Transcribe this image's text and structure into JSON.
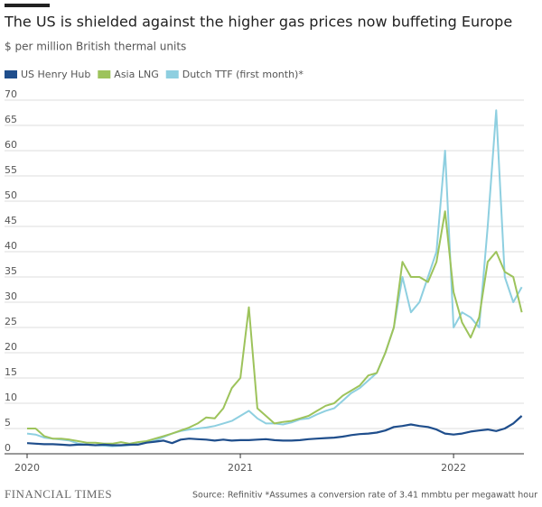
{
  "chart_data": {
    "type": "line",
    "title": "The US is shielded against the higher gas prices now buffeting Europe",
    "subtitle": "$ per million British thermal units",
    "source": "Source: Refinitiv *Assumes a conversion rate of 3.41 mmbtu per megawatt hour",
    "brand": "FINANCIAL TIMES",
    "x": [
      2020.0,
      2020.04,
      2020.08,
      2020.12,
      2020.16,
      2020.2,
      2020.24,
      2020.28,
      2020.32,
      2020.36,
      2020.4,
      2020.44,
      2020.48,
      2020.52,
      2020.56,
      2020.6,
      2020.64,
      2020.68,
      2020.72,
      2020.76,
      2020.8,
      2020.84,
      2020.88,
      2020.92,
      2020.96,
      2021.0,
      2021.04,
      2021.08,
      2021.12,
      2021.16,
      2021.2,
      2021.24,
      2021.28,
      2021.32,
      2021.36,
      2021.4,
      2021.44,
      2021.48,
      2021.52,
      2021.56,
      2021.6,
      2021.64,
      2021.68,
      2021.72,
      2021.76,
      2021.8,
      2021.84,
      2021.88,
      2021.92,
      2021.96,
      2022.0,
      2022.04,
      2022.08,
      2022.12,
      2022.16,
      2022.2,
      2022.24,
      2022.28,
      2022.32
    ],
    "series": [
      {
        "name": "US Henry Hub",
        "color": "#1f4e8c",
        "values": [
          2.1,
          2.0,
          1.9,
          1.9,
          1.8,
          1.7,
          1.8,
          1.8,
          1.7,
          1.8,
          1.7,
          1.7,
          1.8,
          1.8,
          2.2,
          2.4,
          2.6,
          2.1,
          2.8,
          3.0,
          2.9,
          2.8,
          2.6,
          2.8,
          2.6,
          2.7,
          2.7,
          2.8,
          2.9,
          2.7,
          2.6,
          2.6,
          2.7,
          2.9,
          3.0,
          3.1,
          3.2,
          3.4,
          3.7,
          3.9,
          4.0,
          4.2,
          4.6,
          5.3,
          5.5,
          5.8,
          5.5,
          5.3,
          4.8,
          4.0,
          3.8,
          4.0,
          4.4,
          4.6,
          4.8,
          4.5,
          5.0,
          6.0,
          7.5
        ]
      },
      {
        "name": "Asia LNG",
        "color": "#9dc35b",
        "values": [
          5.0,
          5.0,
          3.5,
          3.0,
          3.0,
          2.8,
          2.5,
          2.2,
          2.2,
          2.0,
          2.0,
          2.3,
          2.0,
          2.3,
          2.5,
          3.0,
          3.5,
          4.0,
          4.6,
          5.2,
          6.0,
          7.2,
          7.0,
          9.0,
          13.0,
          15.0,
          29.0,
          9.0,
          7.5,
          6.0,
          6.3,
          6.5,
          7.0,
          7.5,
          8.5,
          9.5,
          10.0,
          11.5,
          12.5,
          13.5,
          15.5,
          16.0,
          20.0,
          25.0,
          38.0,
          35.0,
          35.0,
          34.0,
          38.0,
          48.0,
          32.0,
          26.0,
          23.0,
          27.0,
          38.0,
          40.0,
          36.0,
          35.0,
          28.0
        ]
      },
      {
        "name": "Dutch TTF (first month)*",
        "color": "#8ecfe0",
        "values": [
          4.0,
          3.8,
          3.2,
          3.0,
          2.8,
          2.6,
          2.0,
          1.8,
          1.7,
          1.6,
          1.5,
          1.6,
          1.7,
          1.9,
          2.2,
          2.6,
          3.3,
          4.0,
          4.5,
          4.8,
          5.0,
          5.2,
          5.5,
          6.0,
          6.5,
          7.5,
          8.5,
          7.0,
          6.0,
          6.0,
          5.8,
          6.2,
          6.8,
          7.0,
          7.8,
          8.5,
          9.0,
          10.5,
          12.0,
          13.0,
          14.5,
          16.0,
          20.0,
          25.0,
          35.0,
          28.0,
          30.0,
          35.0,
          40.0,
          60.0,
          25.0,
          28.0,
          27.0,
          25.0,
          45.0,
          68.0,
          35.0,
          30.0,
          33.0
        ]
      }
    ],
    "xlim": [
      2020,
      2022.33
    ],
    "xticks": [
      2020,
      2021,
      2022
    ],
    "ylim": [
      0,
      70
    ],
    "yticks": [
      0,
      5,
      10,
      15,
      20,
      25,
      30,
      35,
      40,
      45,
      50,
      55,
      60,
      65,
      70
    ],
    "grid": true
  }
}
